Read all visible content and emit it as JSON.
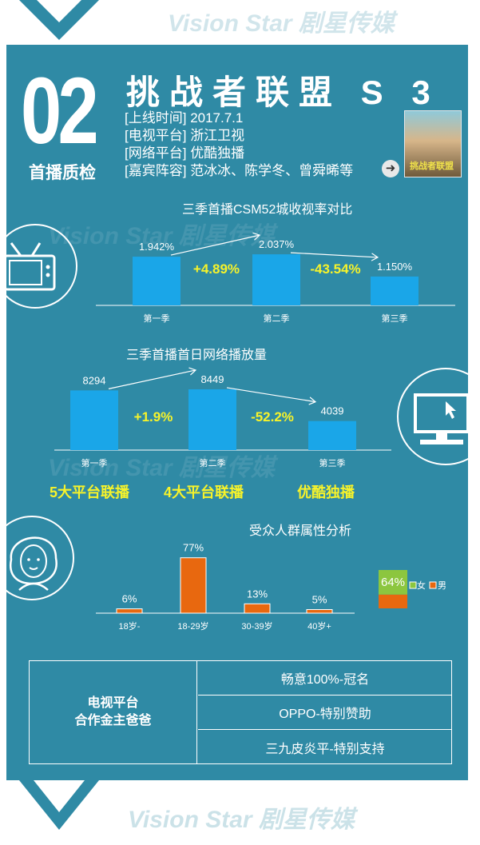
{
  "header": {
    "number": "02",
    "section": "首播质检",
    "title": "挑战者联盟 S 3",
    "info": [
      {
        "label": "[上线时间]",
        "value": "2017.7.1"
      },
      {
        "label": "[电视平台]",
        "value": "浙江卫视"
      },
      {
        "label": "[网络平台]",
        "value": "优酷独播"
      },
      {
        "label": "[嘉宾阵容]",
        "value": "范冰冰、陈学冬、曾舜晞等"
      }
    ],
    "poster_label": "挑战者联盟"
  },
  "watermark": "Vision Star 剧星传媒",
  "platforms": [
    "5大平台联播",
    "4大平台联播",
    "优酷独播"
  ],
  "sponsors": {
    "label_line1": "电视平台",
    "label_line2": "合作金主爸爸",
    "items": [
      "畅意100%-冠名",
      "OPPO-特别赞助",
      "三九皮炎平-特别支持"
    ]
  },
  "colors": {
    "background": "#2f8aa5",
    "bar_blue": "#1aa6e8",
    "bar_orange": "#e8680f",
    "highlight": "#f7f32a",
    "female": "#8cc63f",
    "male": "#e8680f"
  },
  "chart_data": [
    {
      "type": "bar",
      "title": "三季首播CSM52城收视率对比",
      "categories": [
        "第一季",
        "第二季",
        "第三季"
      ],
      "values": [
        1.942,
        2.037,
        1.15
      ],
      "value_labels": [
        "1.942%",
        "2.037%",
        "1.150%"
      ],
      "changes": [
        "+4.89%",
        "-43.54%"
      ],
      "ylim": [
        0,
        2.2
      ]
    },
    {
      "type": "bar",
      "title": "三季首播首日网络播放量",
      "categories": [
        "第一季",
        "第二季",
        "第三季"
      ],
      "values": [
        8294,
        8449,
        4039
      ],
      "value_labels": [
        "8294",
        "8449",
        "4039"
      ],
      "changes": [
        "+1.9%",
        "-52.2%"
      ],
      "ylim": [
        0,
        9000
      ]
    },
    {
      "type": "bar",
      "title": "受众人群属性分析",
      "categories": [
        "18岁-",
        "18-29岁",
        "30-39岁",
        "40岁+"
      ],
      "values": [
        6,
        77,
        13,
        5
      ],
      "value_labels": [
        "6%",
        "77%",
        "13%",
        "5%"
      ],
      "ylim": [
        0,
        80
      ]
    },
    {
      "type": "bar",
      "stacked": true,
      "categories": [
        ""
      ],
      "series": [
        {
          "name": "女",
          "values": [
            64
          ],
          "value_label": "64%"
        },
        {
          "name": "男",
          "values": [
            36
          ]
        }
      ],
      "ylim": [
        0,
        100
      ],
      "legend": "right"
    }
  ]
}
